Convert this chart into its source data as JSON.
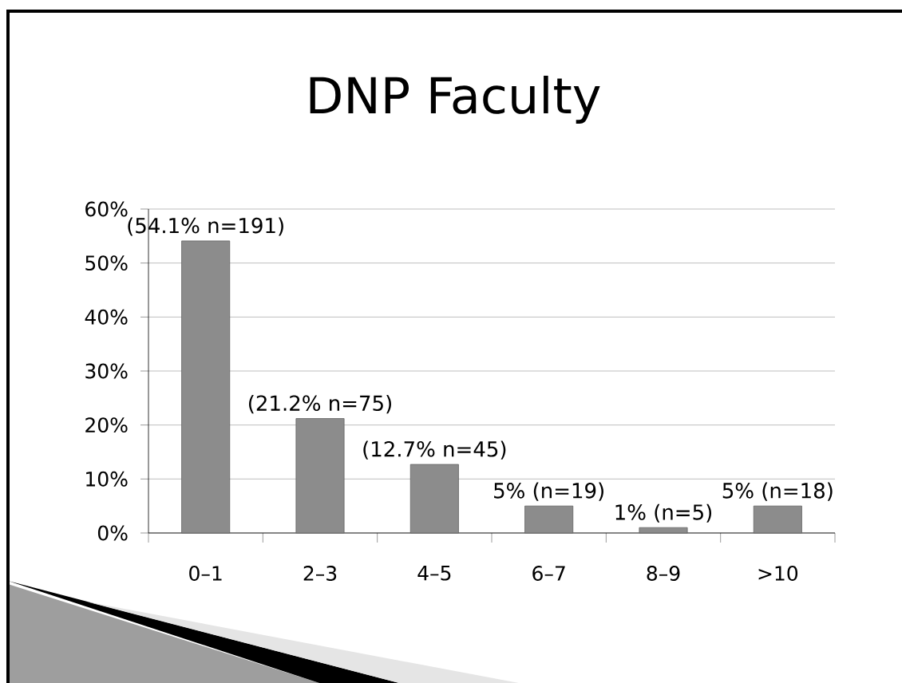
{
  "chart_data": {
    "type": "bar",
    "title": "DNP Faculty",
    "categories": [
      "0–1",
      "2–3",
      "4–5",
      "6–7",
      "8–9",
      ">10"
    ],
    "values": [
      54.1,
      21.2,
      12.7,
      5,
      1,
      5
    ],
    "value_labels": [
      "(54.1% n=191)",
      "(21.2% n=75)",
      "(12.7% n=45)",
      "5% (n=19)",
      "1% (n=5)",
      "5% (n=18)"
    ],
    "color": "#8c8c8c",
    "ylim": [
      0,
      60
    ],
    "yticks": [
      {
        "value": 0,
        "label": "0%"
      },
      {
        "value": 10,
        "label": "10%"
      },
      {
        "value": 20,
        "label": "20%"
      },
      {
        "value": 30,
        "label": "30%"
      },
      {
        "value": 40,
        "label": "40%"
      },
      {
        "value": 50,
        "label": "50%"
      },
      {
        "value": 60,
        "label": "60%"
      }
    ],
    "grid": "y"
  }
}
